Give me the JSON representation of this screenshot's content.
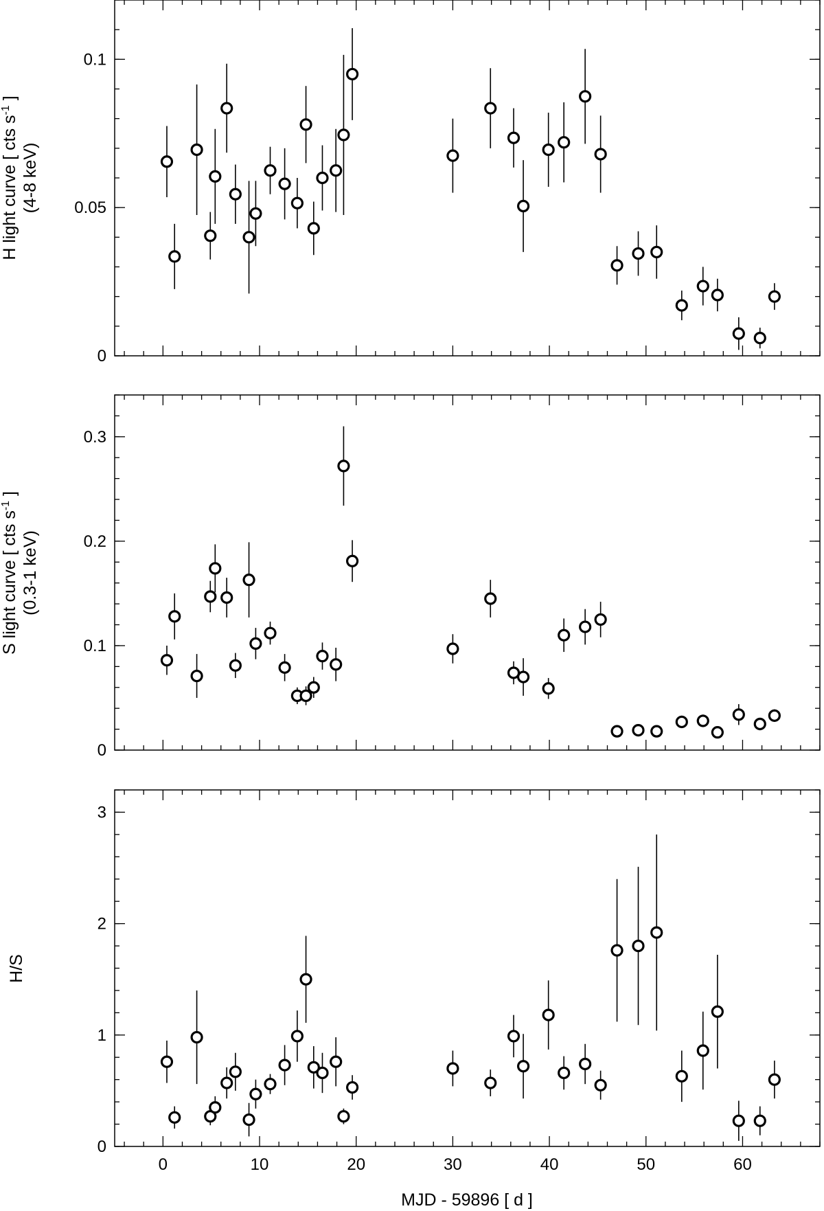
{
  "chart_data": {
    "shared_x": [
      0.4,
      1.2,
      3.5,
      4.9,
      5.4,
      6.6,
      7.5,
      8.9,
      9.6,
      11.1,
      12.6,
      13.9,
      14.8,
      15.6,
      16.5,
      17.9,
      18.7,
      19.6,
      30.0,
      33.9,
      36.3,
      37.3,
      39.9,
      41.5,
      43.7,
      45.3,
      47.0,
      49.2,
      51.1,
      53.7,
      55.9,
      57.4,
      59.6,
      61.8,
      63.3
    ],
    "panels": [
      {
        "type": "scatter",
        "ylabel_line1": "H light curve [ cts s",
        "ylabel_sup": "-1",
        "ylabel_line1_end": " ]",
        "ylabel_line2": "(4-8 keV)",
        "ylim": [
          0,
          0.12
        ],
        "yticks_major": [
          0,
          0.05,
          0.1
        ],
        "ytick_labels": [
          "0",
          "0.05",
          "0.1"
        ],
        "yminor_step": 0.01,
        "y": [
          0.0655,
          0.0335,
          0.0695,
          0.0405,
          0.0605,
          0.0835,
          0.0545,
          0.04,
          0.048,
          0.0625,
          0.058,
          0.0515,
          0.078,
          0.043,
          0.06,
          0.0625,
          0.0745,
          0.095,
          0.0675,
          0.0835,
          0.0735,
          0.0505,
          0.0695,
          0.072,
          0.0875,
          0.068,
          0.0305,
          0.0345,
          0.035,
          0.017,
          0.0235,
          0.0205,
          0.0075,
          0.006,
          0.02
        ],
        "yerr": [
          0.012,
          0.011,
          0.022,
          0.008,
          0.016,
          0.015,
          0.01,
          0.019,
          0.011,
          0.008,
          0.012,
          0.0085,
          0.013,
          0.009,
          0.011,
          0.014,
          0.027,
          0.0155,
          0.0125,
          0.0135,
          0.01,
          0.0155,
          0.0125,
          0.0135,
          0.016,
          0.013,
          0.0065,
          0.0075,
          0.009,
          0.005,
          0.0065,
          0.0055,
          0.0055,
          0.0035,
          0.0045
        ]
      },
      {
        "type": "scatter",
        "ylabel_line1": "S light curve [ cts s",
        "ylabel_sup": "-1",
        "ylabel_line1_end": " ]",
        "ylabel_line2": "(0.3-1 keV)",
        "ylim": [
          0,
          0.34
        ],
        "yticks_major": [
          0,
          0.1,
          0.2,
          0.3
        ],
        "ytick_labels": [
          "0",
          "0.1",
          "0.2",
          "0.3"
        ],
        "yminor_step": 0.02,
        "y": [
          0.086,
          0.128,
          0.071,
          0.147,
          0.174,
          0.146,
          0.081,
          0.163,
          0.102,
          0.112,
          0.079,
          0.052,
          0.052,
          0.06,
          0.09,
          0.082,
          0.272,
          0.181,
          0.097,
          0.145,
          0.074,
          0.07,
          0.059,
          0.11,
          0.118,
          0.125,
          0.018,
          0.019,
          0.018,
          0.027,
          0.028,
          0.017,
          0.034,
          0.025,
          0.033
        ],
        "yerr": [
          0.014,
          0.022,
          0.021,
          0.015,
          0.023,
          0.019,
          0.012,
          0.036,
          0.015,
          0.011,
          0.013,
          0.008,
          0.009,
          0.01,
          0.013,
          0.016,
          0.038,
          0.02,
          0.014,
          0.018,
          0.011,
          0.018,
          0.01,
          0.016,
          0.017,
          0.017,
          0.004,
          0.004,
          0.004,
          0.006,
          0.006,
          0.004,
          0.01,
          0.006,
          0.006
        ]
      },
      {
        "type": "scatter",
        "ylabel_line1": "H/S",
        "ylim": [
          0,
          3.2
        ],
        "yticks_major": [
          0,
          1,
          2,
          3
        ],
        "ytick_labels": [
          "0",
          "1",
          "2",
          "3"
        ],
        "yminor_step": 0.2,
        "y": [
          0.76,
          0.26,
          0.98,
          0.27,
          0.35,
          0.57,
          0.67,
          0.24,
          0.47,
          0.56,
          0.73,
          0.99,
          1.5,
          0.71,
          0.66,
          0.76,
          0.27,
          0.53,
          0.7,
          0.57,
          0.99,
          0.72,
          1.18,
          0.66,
          0.74,
          0.55,
          1.76,
          1.8,
          1.92,
          0.63,
          0.86,
          1.21,
          0.23,
          0.23,
          0.6
        ],
        "yerr": [
          0.19,
          0.1,
          0.42,
          0.08,
          0.1,
          0.14,
          0.17,
          0.15,
          0.13,
          0.09,
          0.18,
          0.23,
          0.39,
          0.19,
          0.18,
          0.22,
          0.07,
          0.11,
          0.16,
          0.12,
          0.19,
          0.29,
          0.31,
          0.15,
          0.18,
          0.13,
          0.64,
          0.71,
          0.88,
          0.23,
          0.35,
          0.51,
          0.18,
          0.13,
          0.17
        ]
      }
    ],
    "xlabel": "MJD - 59896 [ d ]",
    "xlim": [
      -5,
      68
    ],
    "xticks_major": [
      0,
      10,
      20,
      30,
      40,
      50,
      60
    ],
    "xminor_step": 2
  }
}
